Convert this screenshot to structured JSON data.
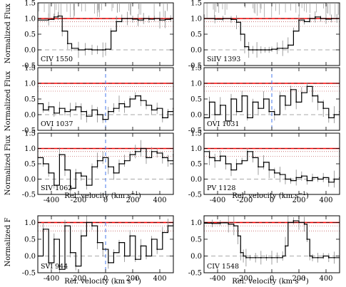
{
  "figure": {
    "xlabel_left": "Rel. velocity  (km s",
    "xlabel_right": "Rel. velocity  (km s",
    "xlabel_sup": "−1",
    "xlabel_close": ")",
    "ylabel_rows": [
      "Normalized Flux",
      "Normalized Flux",
      "Normalized Flux",
      "Normalized F"
    ],
    "colors": {
      "data": "#000000",
      "error": "#888888",
      "continuum": "#ff0000",
      "unity": "#000000",
      "zero_line": "#aaaaaa",
      "dotted": "#aa2222",
      "velocity_marker": "#4477ee",
      "contamination": "#999999"
    },
    "upper_strips_present": true
  },
  "chart_data": [
    {
      "type": "line",
      "panel": "CIV 1550",
      "ion": "CIV 1550",
      "xlim": [
        -500,
        500
      ],
      "ylim": [
        -0.5,
        1.5
      ],
      "yticks": [
        "-0.5",
        "0.0",
        "0.5",
        "1.0",
        "1.5"
      ],
      "xticks": [],
      "has_vmarker": false,
      "series": [
        {
          "name": "",
          "x": [
            -500,
            -420,
            -380,
            -350,
            -320,
            -280,
            -250,
            -200,
            -150,
            -100,
            -60,
            -20,
            0,
            40,
            80,
            120,
            160,
            200,
            240,
            280,
            320,
            360,
            400,
            440,
            480,
            500
          ],
          "y": [
            0.95,
            0.97,
            1.05,
            1.08,
            0.6,
            0.2,
            0.05,
            0.0,
            0.02,
            0.0,
            0.0,
            0.0,
            0.02,
            0.6,
            0.9,
            1.0,
            1.0,
            0.98,
            0.95,
            1.0,
            0.98,
            1.0,
            0.95,
            0.97,
            1.0,
            1.0
          ]
        }
      ]
    },
    {
      "type": "line",
      "panel": "SiIV 1393",
      "ion": "SiIV 1393",
      "xlim": [
        -500,
        500
      ],
      "ylim": [
        -0.5,
        1.5
      ],
      "yticks": [
        "-0.5",
        "0.0",
        "0.5",
        "1.0",
        "1.5"
      ],
      "xticks": [],
      "has_vmarker": false,
      "series": [
        {
          "name": "",
          "x": [
            -500,
            -420,
            -360,
            -300,
            -260,
            -230,
            -200,
            -170,
            -140,
            -110,
            -80,
            -50,
            -20,
            0,
            40,
            80,
            120,
            160,
            200,
            240,
            280,
            320,
            360,
            400,
            440,
            480,
            500
          ],
          "y": [
            1.0,
            0.98,
            1.0,
            0.97,
            0.88,
            0.5,
            0.1,
            0.0,
            0.0,
            0.0,
            0.0,
            0.0,
            0.0,
            0.02,
            0.05,
            0.05,
            0.15,
            0.6,
            0.95,
            0.9,
            1.0,
            1.05,
            1.0,
            0.98,
            1.0,
            1.0,
            1.0
          ]
        }
      ]
    },
    {
      "type": "line",
      "panel": "OVI 1037",
      "ion": "OVI 1037",
      "xlim": [
        -500,
        500
      ],
      "ylim": [
        -0.5,
        1.5
      ],
      "yticks": [
        "-0.5",
        "0.0",
        "0.5",
        "1.0",
        "1.5"
      ],
      "xticks": [],
      "has_vmarker": true,
      "series": [
        {
          "name": "",
          "x": [
            -500,
            -460,
            -420,
            -380,
            -340,
            -300,
            -260,
            -220,
            -180,
            -140,
            -100,
            -60,
            -20,
            20,
            60,
            100,
            140,
            180,
            220,
            260,
            300,
            340,
            380,
            420,
            460,
            500
          ],
          "y": [
            0.35,
            0.15,
            0.25,
            0.05,
            0.2,
            0.1,
            0.15,
            0.25,
            0.1,
            -0.05,
            0.15,
            0.0,
            -0.15,
            0.1,
            0.2,
            0.35,
            0.25,
            0.5,
            0.6,
            0.45,
            0.3,
            0.15,
            0.2,
            -0.1,
            0.1,
            0.2
          ]
        }
      ]
    },
    {
      "type": "line",
      "panel": "OVI 1031",
      "ion": "OVI 1031",
      "xlim": [
        -500,
        500
      ],
      "ylim": [
        -0.5,
        1.5
      ],
      "yticks": [
        "-0.5",
        "0.0",
        "0.5",
        "1.0",
        "1.5"
      ],
      "xticks": [],
      "has_vmarker": true,
      "series": [
        {
          "name": "",
          "x": [
            -500,
            -460,
            -420,
            -380,
            -340,
            -300,
            -260,
            -220,
            -180,
            -140,
            -100,
            -60,
            -20,
            20,
            60,
            100,
            140,
            180,
            220,
            260,
            300,
            340,
            380,
            420,
            460,
            500
          ],
          "y": [
            -0.1,
            0.4,
            0.0,
            0.3,
            -0.2,
            0.5,
            0.1,
            0.6,
            -0.1,
            0.4,
            0.2,
            0.5,
            0.1,
            0.0,
            0.6,
            0.3,
            0.8,
            0.4,
            0.7,
            0.9,
            0.6,
            0.4,
            0.2,
            -0.1,
            0.0,
            0.1
          ]
        }
      ]
    },
    {
      "type": "line",
      "panel": "SIV 1062",
      "ion": "SIV 1062",
      "xlim": [
        -500,
        500
      ],
      "ylim": [
        -0.5,
        1.5
      ],
      "yticks": [
        "-0.5",
        "0.0",
        "0.5",
        "1.0",
        "1.5"
      ],
      "xticks": [],
      "has_vmarker": true,
      "series": [
        {
          "name": "",
          "x": [
            -500,
            -460,
            -420,
            -380,
            -340,
            -300,
            -260,
            -220,
            -180,
            -140,
            -100,
            -60,
            -20,
            20,
            60,
            100,
            140,
            180,
            220,
            260,
            300,
            340,
            380,
            420,
            460,
            500
          ],
          "y": [
            0.7,
            0.5,
            0.2,
            -0.2,
            0.8,
            0.3,
            -0.3,
            0.2,
            0.1,
            -0.2,
            0.4,
            0.6,
            0.7,
            0.4,
            0.2,
            0.5,
            0.6,
            0.8,
            0.9,
            1.0,
            0.7,
            0.9,
            0.85,
            0.7,
            0.6,
            0.8
          ]
        }
      ]
    },
    {
      "type": "line",
      "panel": "PV 1128",
      "ion": "PV 1128",
      "xlim": [
        -500,
        500
      ],
      "ylim": [
        -0.5,
        1.5
      ],
      "yticks": [
        "-0.5",
        "0.0",
        "0.5",
        "1.0",
        "1.5"
      ],
      "xticks": [],
      "has_vmarker": false,
      "series": [
        {
          "name": "",
          "x": [
            -500,
            -460,
            -420,
            -380,
            -340,
            -300,
            -260,
            -220,
            -180,
            -140,
            -100,
            -60,
            -20,
            20,
            60,
            100,
            140,
            180,
            220,
            260,
            300,
            340,
            380,
            420,
            460,
            500
          ],
          "y": [
            0.9,
            0.7,
            0.6,
            0.75,
            0.5,
            0.3,
            0.5,
            0.6,
            0.9,
            0.7,
            0.4,
            0.55,
            0.3,
            0.2,
            0.15,
            0.0,
            -0.05,
            0.05,
            0.1,
            -0.05,
            0.05,
            0.0,
            0.05,
            -0.1,
            0.0,
            0.05
          ]
        }
      ]
    },
    {
      "type": "line",
      "panel": "SVI 944",
      "ion": "SVI 944",
      "xlim": [
        -500,
        500
      ],
      "ylim": [
        -0.5,
        1.2
      ],
      "yticks": [
        "-0.5",
        "0.0",
        "0.5",
        "1.0"
      ],
      "xticks": [
        "-400",
        "-200",
        "0",
        "200",
        "400"
      ],
      "has_vmarker": true,
      "series": [
        {
          "name": "",
          "x": [
            -500,
            -460,
            -420,
            -380,
            -340,
            -300,
            -260,
            -220,
            -180,
            -140,
            -100,
            -60,
            -20,
            20,
            60,
            100,
            140,
            180,
            220,
            260,
            300,
            340,
            380,
            420,
            460,
            500
          ],
          "y": [
            0.0,
            0.8,
            -0.2,
            0.5,
            -0.4,
            0.9,
            0.1,
            -0.3,
            0.6,
            1.0,
            0.9,
            0.4,
            0.2,
            -0.2,
            0.1,
            0.4,
            0.0,
            0.6,
            -0.1,
            0.3,
            0.0,
            0.5,
            0.2,
            0.7,
            0.9,
            1.0
          ]
        }
      ]
    },
    {
      "type": "line",
      "panel": "CIV 1548",
      "ion": "CIV 1548",
      "xlim": [
        -500,
        500
      ],
      "ylim": [
        -0.5,
        1.2
      ],
      "yticks": [
        "-0.5",
        "0.0",
        "0.5",
        "1.0"
      ],
      "xticks": [
        "-400",
        "-200",
        "0",
        "200",
        "400"
      ],
      "has_vmarker": false,
      "series": [
        {
          "name": "",
          "x": [
            -500,
            -440,
            -380,
            -320,
            -280,
            -250,
            -230,
            -210,
            -190,
            -160,
            -120,
            -80,
            -40,
            0,
            40,
            80,
            100,
            120,
            160,
            200,
            240,
            260,
            280,
            300,
            340,
            380,
            420,
            460,
            500
          ],
          "y": [
            0.98,
            0.97,
            0.99,
            0.95,
            0.9,
            0.6,
            0.1,
            0.0,
            -0.05,
            -0.05,
            -0.05,
            -0.05,
            -0.05,
            -0.05,
            -0.05,
            0.0,
            0.3,
            1.0,
            1.05,
            1.0,
            0.95,
            0.5,
            0.0,
            -0.05,
            -0.05,
            0.0,
            -0.05,
            -0.05,
            -0.05
          ]
        }
      ]
    }
  ]
}
